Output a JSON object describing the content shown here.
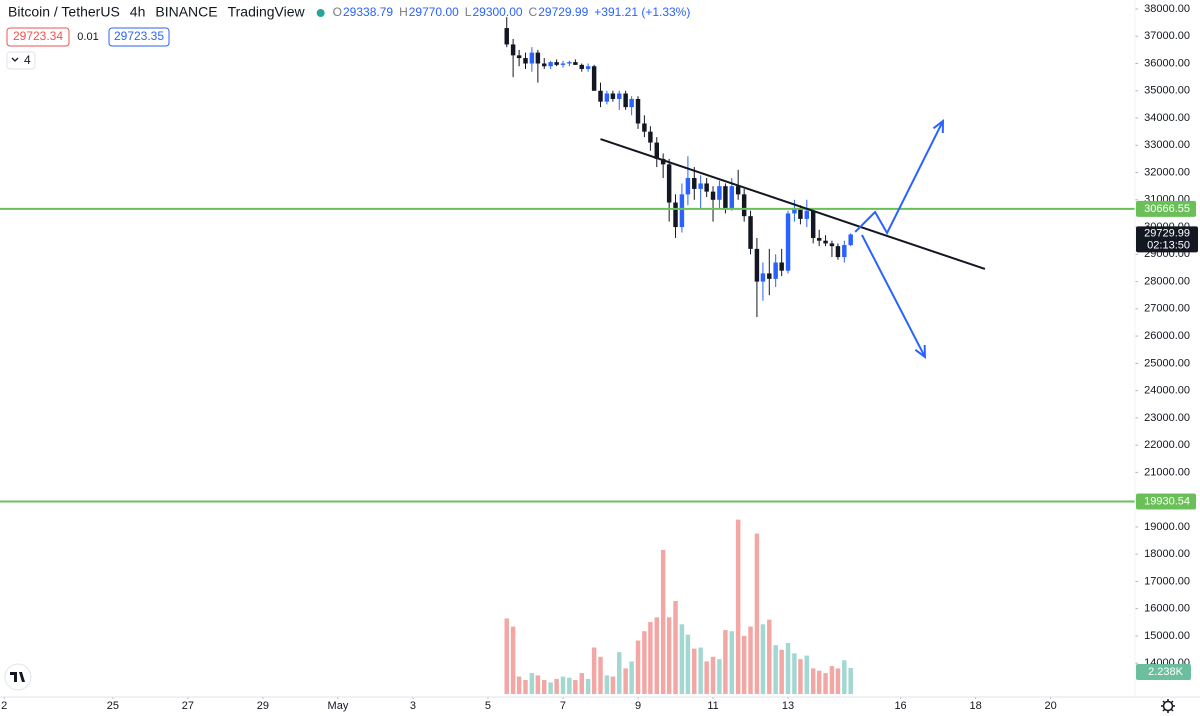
{
  "chart_data": {
    "type": "candlestick",
    "header": {
      "symbol": "Bitcoin / TetherUS",
      "interval": "4h",
      "exchange": "BINANCE",
      "source": "TradingView",
      "ohlc": [
        {
          "label": "O",
          "value": "29338.79"
        },
        {
          "label": "H",
          "value": "29770.00"
        },
        {
          "label": "L",
          "value": "29300.00"
        },
        {
          "label": "C",
          "value": "29729.99"
        }
      ],
      "change": "+391.21 (+1.33%)"
    },
    "sell_price": "29723.34",
    "spread": "0.01",
    "buy_price": "29723.35",
    "indicators_count": "4",
    "up_color": "#2962ff",
    "down_color": "#131722",
    "volume_up_color": "#a3d7d2",
    "volume_down_color": "#f2a7a5",
    "xlim": [
      -3.01,
      27.25
    ],
    "ylim": [
      12650,
      38330
    ],
    "volume_lim": [
      0,
      59.7
    ],
    "xticks": [
      {
        "value": -2.9,
        "label": "2"
      },
      {
        "value": 0,
        "label": "25"
      },
      {
        "value": 2,
        "label": "27"
      },
      {
        "value": 4,
        "label": "29"
      },
      {
        "value": 6,
        "label": "May"
      },
      {
        "value": 8,
        "label": "3"
      },
      {
        "value": 10,
        "label": "5"
      },
      {
        "value": 12,
        "label": "7"
      },
      {
        "value": 14,
        "label": "9"
      },
      {
        "value": 16,
        "label": "11"
      },
      {
        "value": 18,
        "label": "13"
      },
      {
        "value": 21,
        "label": "16"
      },
      {
        "value": 23,
        "label": "18"
      },
      {
        "value": 25,
        "label": "20"
      }
    ],
    "yticks": [
      {
        "value": 38000,
        "label": "38000.00"
      },
      {
        "value": 37000,
        "label": "37000.00"
      },
      {
        "value": 36000,
        "label": "36000.00"
      },
      {
        "value": 35000,
        "label": "35000.00"
      },
      {
        "value": 34000,
        "label": "34000.00"
      },
      {
        "value": 33000,
        "label": "33000.00"
      },
      {
        "value": 32000,
        "label": "32000.00"
      },
      {
        "value": 31000,
        "label": "31000.00"
      },
      {
        "value": 30000,
        "label": "30000.00"
      },
      {
        "value": 29000,
        "label": "29000.00"
      },
      {
        "value": 28000,
        "label": "28000.00"
      },
      {
        "value": 27000,
        "label": "27000.00"
      },
      {
        "value": 26000,
        "label": "26000.00"
      },
      {
        "value": 25000,
        "label": "25000.00"
      },
      {
        "value": 24000,
        "label": "24000.00"
      },
      {
        "value": 23000,
        "label": "23000.00"
      },
      {
        "value": 22000,
        "label": "22000.00"
      },
      {
        "value": 21000,
        "label": "21000.00"
      },
      {
        "value": 20000,
        "label": "20000.00"
      },
      {
        "value": 19000,
        "label": "19000.00"
      },
      {
        "value": 18000,
        "label": "18000.00"
      },
      {
        "value": 17000,
        "label": "17000.00"
      },
      {
        "value": 16000,
        "label": "16000.00"
      },
      {
        "value": 15000,
        "label": "15000.00"
      },
      {
        "value": 14000,
        "label": "14000.00"
      }
    ],
    "grid": false,
    "x": [
      10.5,
      10.67,
      10.83,
      11,
      11.17,
      11.33,
      11.5,
      11.67,
      11.83,
      12,
      12.17,
      12.33,
      12.5,
      12.67,
      12.83,
      13,
      13.17,
      13.33,
      13.5,
      13.67,
      13.83,
      14,
      14.17,
      14.33,
      14.5,
      14.67,
      14.83,
      15,
      15.17,
      15.33,
      15.5,
      15.67,
      15.83,
      16,
      16.17,
      16.33,
      16.5,
      16.67,
      16.83,
      17,
      17.17,
      17.33,
      17.5,
      17.67,
      17.83,
      18,
      18.17,
      18.33,
      18.5,
      18.67,
      18.83,
      19,
      19.17,
      19.33,
      19.5,
      19.67
    ],
    "open": [
      37300,
      36700,
      36300,
      36200,
      36000,
      36400,
      36000,
      35900,
      36050,
      35950,
      36000,
      36050,
      35950,
      35800,
      35900,
      35000,
      34600,
      34900,
      34700,
      34900,
      34400,
      34700,
      33800,
      33500,
      33100,
      32500,
      32300,
      30900,
      30000,
      31200,
      31800,
      31400,
      31600,
      31300,
      31000,
      31500,
      30700,
      31500,
      31200,
      30400,
      29200,
      28000,
      28300,
      28100,
      28700,
      28400,
      30500,
      30700,
      30300,
      30600,
      29600,
      29500,
      29400,
      29300,
      28900,
      29338.79
    ],
    "high": [
      37700,
      36900,
      36500,
      36400,
      36600,
      36500,
      36200,
      36100,
      36150,
      36100,
      36100,
      36150,
      36000,
      36000,
      35950,
      35300,
      35000,
      35000,
      35000,
      35000,
      34800,
      34800,
      34100,
      33700,
      33300,
      32700,
      32500,
      31200,
      31600,
      32600,
      32200,
      31900,
      31800,
      31500,
      31700,
      31600,
      31800,
      32100,
      31400,
      30600,
      29600,
      28700,
      29200,
      29000,
      29200,
      30600,
      31000,
      30800,
      31000,
      30700,
      29900,
      29700,
      29500,
      29400,
      29500,
      29770
    ],
    "low": [
      36600,
      35500,
      35900,
      35800,
      35700,
      35300,
      35800,
      35800,
      35900,
      35850,
      35900,
      35950,
      35700,
      35700,
      35000,
      34400,
      34500,
      34600,
      34300,
      34300,
      34100,
      33600,
      33300,
      32800,
      32200,
      31800,
      30200,
      29600,
      29800,
      30800,
      31000,
      30700,
      31100,
      30200,
      30700,
      30500,
      30600,
      31000,
      30200,
      29000,
      26700,
      27300,
      27500,
      27800,
      28200,
      28300,
      30200,
      30100,
      30000,
      29400,
      29300,
      29300,
      28900,
      28800,
      28700,
      29300
    ],
    "close": [
      36700,
      36300,
      36200,
      36000,
      36400,
      36000,
      35900,
      36050,
      35950,
      36000,
      36050,
      35950,
      35800,
      35900,
      35000,
      34600,
      34900,
      34700,
      34900,
      34400,
      34700,
      33800,
      33500,
      33100,
      32500,
      32300,
      30900,
      30000,
      31200,
      31800,
      31400,
      31600,
      31300,
      31000,
      31500,
      30700,
      31500,
      31200,
      30400,
      29200,
      28000,
      28300,
      28100,
      28700,
      28400,
      30500,
      30700,
      30300,
      30600,
      29600,
      29500,
      29400,
      29300,
      28900,
      29340,
      29729.99
    ],
    "volume": [
      6.5,
      5.8,
      1.5,
      1.2,
      1.8,
      1.6,
      1.2,
      1,
      1.3,
      1.5,
      1.4,
      1.2,
      1.8,
      1.3,
      4.0,
      3.2,
      1.6,
      1.5,
      3.6,
      2.2,
      2.8,
      4.6,
      5.4,
      6.2,
      6.6,
      12.4,
      6.6,
      8.0,
      6.0,
      5.1,
      3.9,
      4.0,
      2.8,
      3.2,
      3.0,
      5.5,
      5.4,
      15.0,
      5.0,
      5.8,
      13.8,
      6.0,
      6.4,
      4.2,
      3.8,
      4.4,
      3.5,
      3.0,
      3.3,
      2.2,
      2.0,
      1.8,
      2.4,
      2.2,
      2.9,
      2.238
    ],
    "last_volume": {
      "value": 2.238,
      "label": "2.238K"
    },
    "last_price": {
      "value": 29729.99,
      "label": "29729.99"
    },
    "countdown": "02:13:50",
    "horizontal_lines": [
      {
        "value": 30666.55,
        "label": "30666.55",
        "color": "#6bbf59"
      },
      {
        "value": 19930.54,
        "label": "19930.54",
        "color": "#6bbf59"
      }
    ],
    "trendline": {
      "x": [
        13.0,
        23.25
      ],
      "y": [
        33230,
        28462
      ],
      "color": "#131722"
    },
    "projections": [
      {
        "x": [
          19.79,
          20.32,
          20.64,
          22.13
        ],
        "y": [
          29820,
          30553,
          29783,
          33891
        ],
        "color": "#2962ff"
      },
      {
        "x": [
          19.97,
          21.65
        ],
        "y": [
          29710,
          25234
        ],
        "color": "#2962ff"
      }
    ]
  }
}
